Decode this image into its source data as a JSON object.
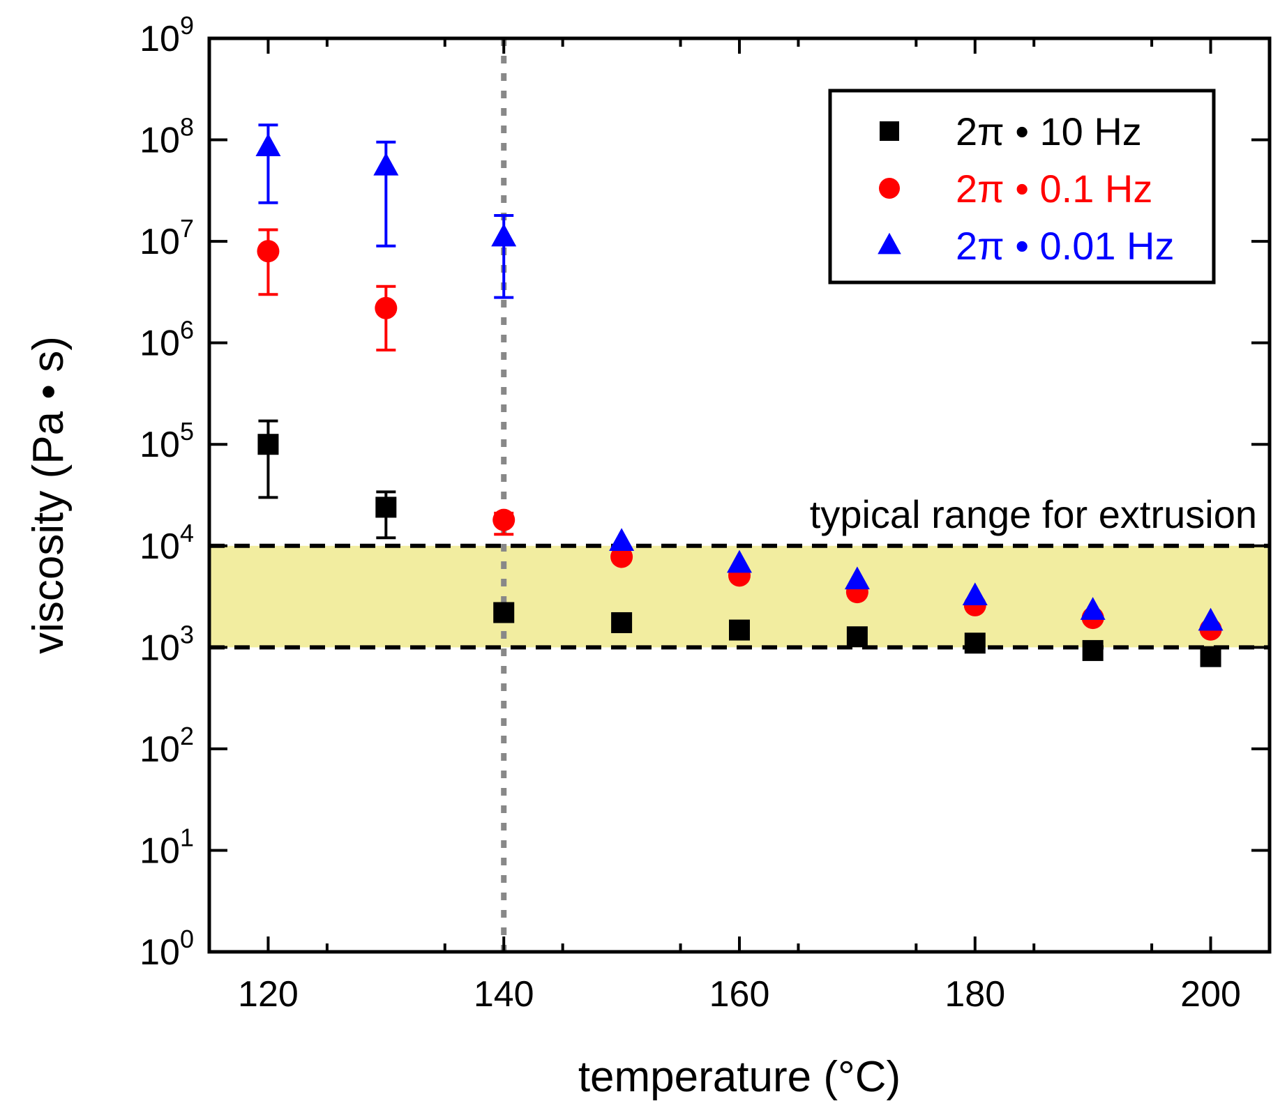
{
  "chart_data": {
    "type": "scatter",
    "xlabel": "temperature (°C)",
    "ylabel": "viscosity (Pa • s)",
    "xlim": [
      115,
      205
    ],
    "ylim": [
      1,
      1000000000
    ],
    "yscale": "log",
    "x_ticks": [
      120,
      140,
      160,
      180,
      200
    ],
    "x_tick_labels": [
      "120",
      "140",
      "160",
      "180",
      "200"
    ],
    "y_ticks": [
      {
        "value": 1,
        "base": "10",
        "exp": "0"
      },
      {
        "value": 10,
        "base": "10",
        "exp": "1"
      },
      {
        "value": 100,
        "base": "10",
        "exp": "2"
      },
      {
        "value": 1000,
        "base": "10",
        "exp": "3"
      },
      {
        "value": 10000,
        "base": "10",
        "exp": "4"
      },
      {
        "value": 100000,
        "base": "10",
        "exp": "5"
      },
      {
        "value": 1000000,
        "base": "10",
        "exp": "6"
      },
      {
        "value": 10000000,
        "base": "10",
        "exp": "7"
      },
      {
        "value": 100000000,
        "base": "10",
        "exp": "8"
      },
      {
        "value": 1000000000,
        "base": "10",
        "exp": "9"
      }
    ],
    "grid": false,
    "legend_position": "top-right",
    "series": [
      {
        "name": "2π • 10 Hz",
        "color": "#000000",
        "marker": "square",
        "points": [
          {
            "x": 120,
            "y": 100000,
            "lo": 30000,
            "hi": 170000
          },
          {
            "x": 130,
            "y": 24000,
            "lo": 12000,
            "hi": 34000
          },
          {
            "x": 140,
            "y": 2200
          },
          {
            "x": 150,
            "y": 1750
          },
          {
            "x": 160,
            "y": 1480
          },
          {
            "x": 170,
            "y": 1270
          },
          {
            "x": 180,
            "y": 1100
          },
          {
            "x": 190,
            "y": 930
          },
          {
            "x": 200,
            "y": 810
          }
        ]
      },
      {
        "name": "2π • 0.1 Hz",
        "color": "#ff0000",
        "marker": "circle",
        "points": [
          {
            "x": 120,
            "y": 8000000,
            "lo": 3000000,
            "hi": 13000000
          },
          {
            "x": 130,
            "y": 2200000,
            "lo": 850000,
            "hi": 3600000
          },
          {
            "x": 140,
            "y": 18000,
            "lo": 13000,
            "hi": 21000
          },
          {
            "x": 150,
            "y": 7800
          },
          {
            "x": 160,
            "y": 5100
          },
          {
            "x": 170,
            "y": 3500
          },
          {
            "x": 180,
            "y": 2600
          },
          {
            "x": 190,
            "y": 1950
          },
          {
            "x": 200,
            "y": 1500
          }
        ]
      },
      {
        "name": "2π • 0.01 Hz",
        "color": "#0000ff",
        "marker": "triangle",
        "points": [
          {
            "x": 120,
            "y": 85000000,
            "lo": 24000000,
            "hi": 140000000
          },
          {
            "x": 130,
            "y": 55000000,
            "lo": 9000000,
            "hi": 95000000
          },
          {
            "x": 140,
            "y": 11000000,
            "lo": 2800000,
            "hi": 18000000
          },
          {
            "x": 150,
            "y": 11000
          },
          {
            "x": 160,
            "y": 6700
          },
          {
            "x": 170,
            "y": 4600
          },
          {
            "x": 180,
            "y": 3200
          },
          {
            "x": 190,
            "y": 2300
          },
          {
            "x": 200,
            "y": 1800
          }
        ]
      }
    ],
    "annotations": {
      "band": {
        "ymin": 1000,
        "ymax": 10000,
        "color": "#f2eda0",
        "line_color": "#000000"
      },
      "band_label": "typical range for extrusion",
      "vline": {
        "x": 140,
        "color": "#888888"
      }
    }
  }
}
